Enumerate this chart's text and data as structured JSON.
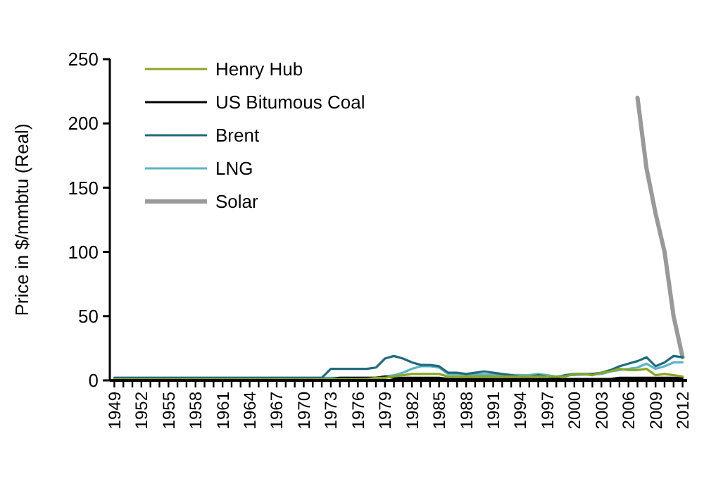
{
  "chart_data": {
    "type": "line",
    "ylabel": "Price in $/mmbtu (Real)",
    "xlim": [
      1948.5,
      2012.5
    ],
    "ylim": [
      0,
      250
    ],
    "yticks": [
      0,
      50,
      100,
      150,
      200,
      250
    ],
    "xticks": [
      1949,
      {
        "value": 1950,
        "label": null
      },
      {
        "value": 1951,
        "label": null
      },
      1952,
      {
        "value": 1953,
        "label": null
      },
      {
        "value": 1954,
        "label": null
      },
      1955,
      {
        "value": 1956,
        "label": null
      },
      {
        "value": 1957,
        "label": null
      },
      1958,
      {
        "value": 1959,
        "label": null
      },
      {
        "value": 1960,
        "label": null
      },
      1961,
      {
        "value": 1962,
        "label": null
      },
      {
        "value": 1963,
        "label": null
      },
      1964,
      {
        "value": 1965,
        "label": null
      },
      {
        "value": 1966,
        "label": null
      },
      1967,
      {
        "value": 1968,
        "label": null
      },
      {
        "value": 1969,
        "label": null
      },
      1970,
      {
        "value": 1971,
        "label": null
      },
      {
        "value": 1972,
        "label": null
      },
      1973,
      {
        "value": 1974,
        "label": null
      },
      {
        "value": 1975,
        "label": null
      },
      1976,
      {
        "value": 1977,
        "label": null
      },
      {
        "value": 1978,
        "label": null
      },
      1979,
      {
        "value": 1980,
        "label": null
      },
      {
        "value": 1981,
        "label": null
      },
      1982,
      {
        "value": 1983,
        "label": null
      },
      {
        "value": 1984,
        "label": null
      },
      1985,
      {
        "value": 1986,
        "label": null
      },
      {
        "value": 1987,
        "label": null
      },
      1988,
      {
        "value": 1989,
        "label": null
      },
      {
        "value": 1990,
        "label": null
      },
      1991,
      {
        "value": 1992,
        "label": null
      },
      {
        "value": 1993,
        "label": null
      },
      1994,
      {
        "value": 1995,
        "label": null
      },
      {
        "value": 1996,
        "label": null
      },
      1997,
      {
        "value": 1998,
        "label": null
      },
      {
        "value": 1999,
        "label": null
      },
      2000,
      {
        "value": 2001,
        "label": null
      },
      {
        "value": 2002,
        "label": null
      },
      2003,
      {
        "value": 2004,
        "label": null
      },
      {
        "value": 2005,
        "label": null
      },
      2006,
      {
        "value": 2007,
        "label": null
      },
      {
        "value": 2008,
        "label": null
      },
      2009,
      {
        "value": 2010,
        "label": null
      },
      {
        "value": 2011,
        "label": null
      },
      2012
    ],
    "grid": false,
    "legend": "top left",
    "marker": "none",
    "line_style": "solid",
    "series": [
      {
        "name": "Henry Hub",
        "color": "#8aa622",
        "x": [
          1949,
          1977,
          1978,
          1979,
          1980,
          1981,
          1982,
          1985,
          1986,
          1987,
          1999,
          2000,
          2001,
          2002,
          2003,
          2004,
          2005,
          2006,
          2007,
          2008,
          2009,
          2010,
          2011,
          2012
        ],
        "values": [
          1,
          1,
          2,
          2,
          3,
          4,
          5,
          5,
          3,
          3,
          3,
          5,
          5,
          4,
          6,
          7,
          9,
          8,
          8,
          9,
          4,
          5,
          4,
          3
        ]
      },
      {
        "name": "US Bitumous Coal",
        "color": "#000000",
        "x": [
          1949,
          1973,
          1974,
          1978,
          1979,
          1980,
          1985,
          1986,
          2004,
          2005,
          2012
        ],
        "values": [
          1,
          1,
          2,
          2,
          3,
          2,
          2,
          1,
          1,
          2,
          2
        ]
      },
      {
        "name": "Brent",
        "color": "#1f6a80",
        "x": [
          1949,
          1972,
          1973,
          1977,
          1978,
          1979,
          1980,
          1981,
          1982,
          1983,
          1984,
          1985,
          1986,
          1987,
          1988,
          1989,
          1990,
          1991,
          1992,
          1993,
          1994,
          1995,
          1996,
          1997,
          1998,
          1999,
          2000,
          2001,
          2002,
          2003,
          2004,
          2005,
          2006,
          2007,
          2008,
          2009,
          2010,
          2011,
          2012
        ],
        "values": [
          2,
          2,
          9,
          9,
          10,
          17,
          19,
          17,
          14,
          12,
          12,
          11,
          6,
          6,
          5,
          6,
          7,
          6,
          5,
          4,
          3,
          3,
          4,
          3,
          2,
          4,
          5,
          5,
          5,
          6,
          8,
          11,
          13,
          15,
          18,
          11,
          14,
          19,
          18
        ]
      },
      {
        "name": "LNG",
        "color": "#5ab4c8",
        "x": [
          1949,
          1978,
          1979,
          1980,
          1981,
          1982,
          1983,
          1984,
          1985,
          1986,
          1995,
          1996,
          1997,
          1998,
          1999,
          2003,
          2004,
          2005,
          2006,
          2007,
          2008,
          2009,
          2010,
          2011,
          2012
        ],
        "values": [
          2,
          2,
          3,
          4,
          6,
          9,
          11,
          11,
          10,
          5,
          4,
          5,
          4,
          3,
          4,
          5,
          7,
          8,
          9,
          10,
          13,
          9,
          11,
          14,
          14
        ]
      },
      {
        "name": "Solar",
        "color": "#999999",
        "x": [
          2007,
          2008,
          2009,
          2010,
          2011,
          2012
        ],
        "values": [
          220,
          165,
          130,
          100,
          50,
          18
        ]
      }
    ]
  }
}
